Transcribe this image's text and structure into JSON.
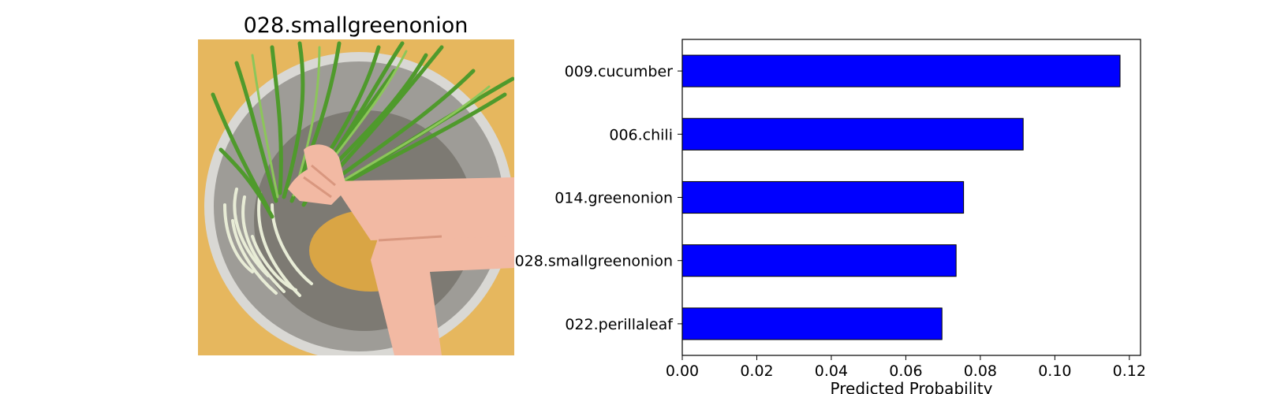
{
  "image_panel": {
    "title": "028.smallgreenonion",
    "subject": "green-onions-in-bowl-photo",
    "colors": {
      "background": "#e6b75e",
      "bowl": "#9e9c97",
      "bowl_rim": "#d9d8d4",
      "bowl_inner": "#7d7a73",
      "bowl_bottom": "#d9a545",
      "greens": "#4f9a2c",
      "greens_light": "#8cc65a",
      "roots": "#e8ecd6",
      "hand": "#f2b9a3",
      "hand_shadow": "#d9977f"
    }
  },
  "chart_data": {
    "type": "bar",
    "orientation": "horizontal",
    "categories": [
      "009.cucumber",
      "006.chili",
      "014.greenonion",
      "028.smallgreenonion",
      "022.perillaleaf"
    ],
    "values": [
      0.1175,
      0.0915,
      0.0755,
      0.0735,
      0.0697
    ],
    "xlabel": "Predicted Probability",
    "xlim": [
      0,
      0.123
    ],
    "xticks": [
      "0.00",
      "0.02",
      "0.04",
      "0.06",
      "0.08",
      "0.10",
      "0.12"
    ],
    "grid": false,
    "colors": {
      "bar_fill": "#0000ff",
      "bar_edge": "#000000"
    }
  }
}
